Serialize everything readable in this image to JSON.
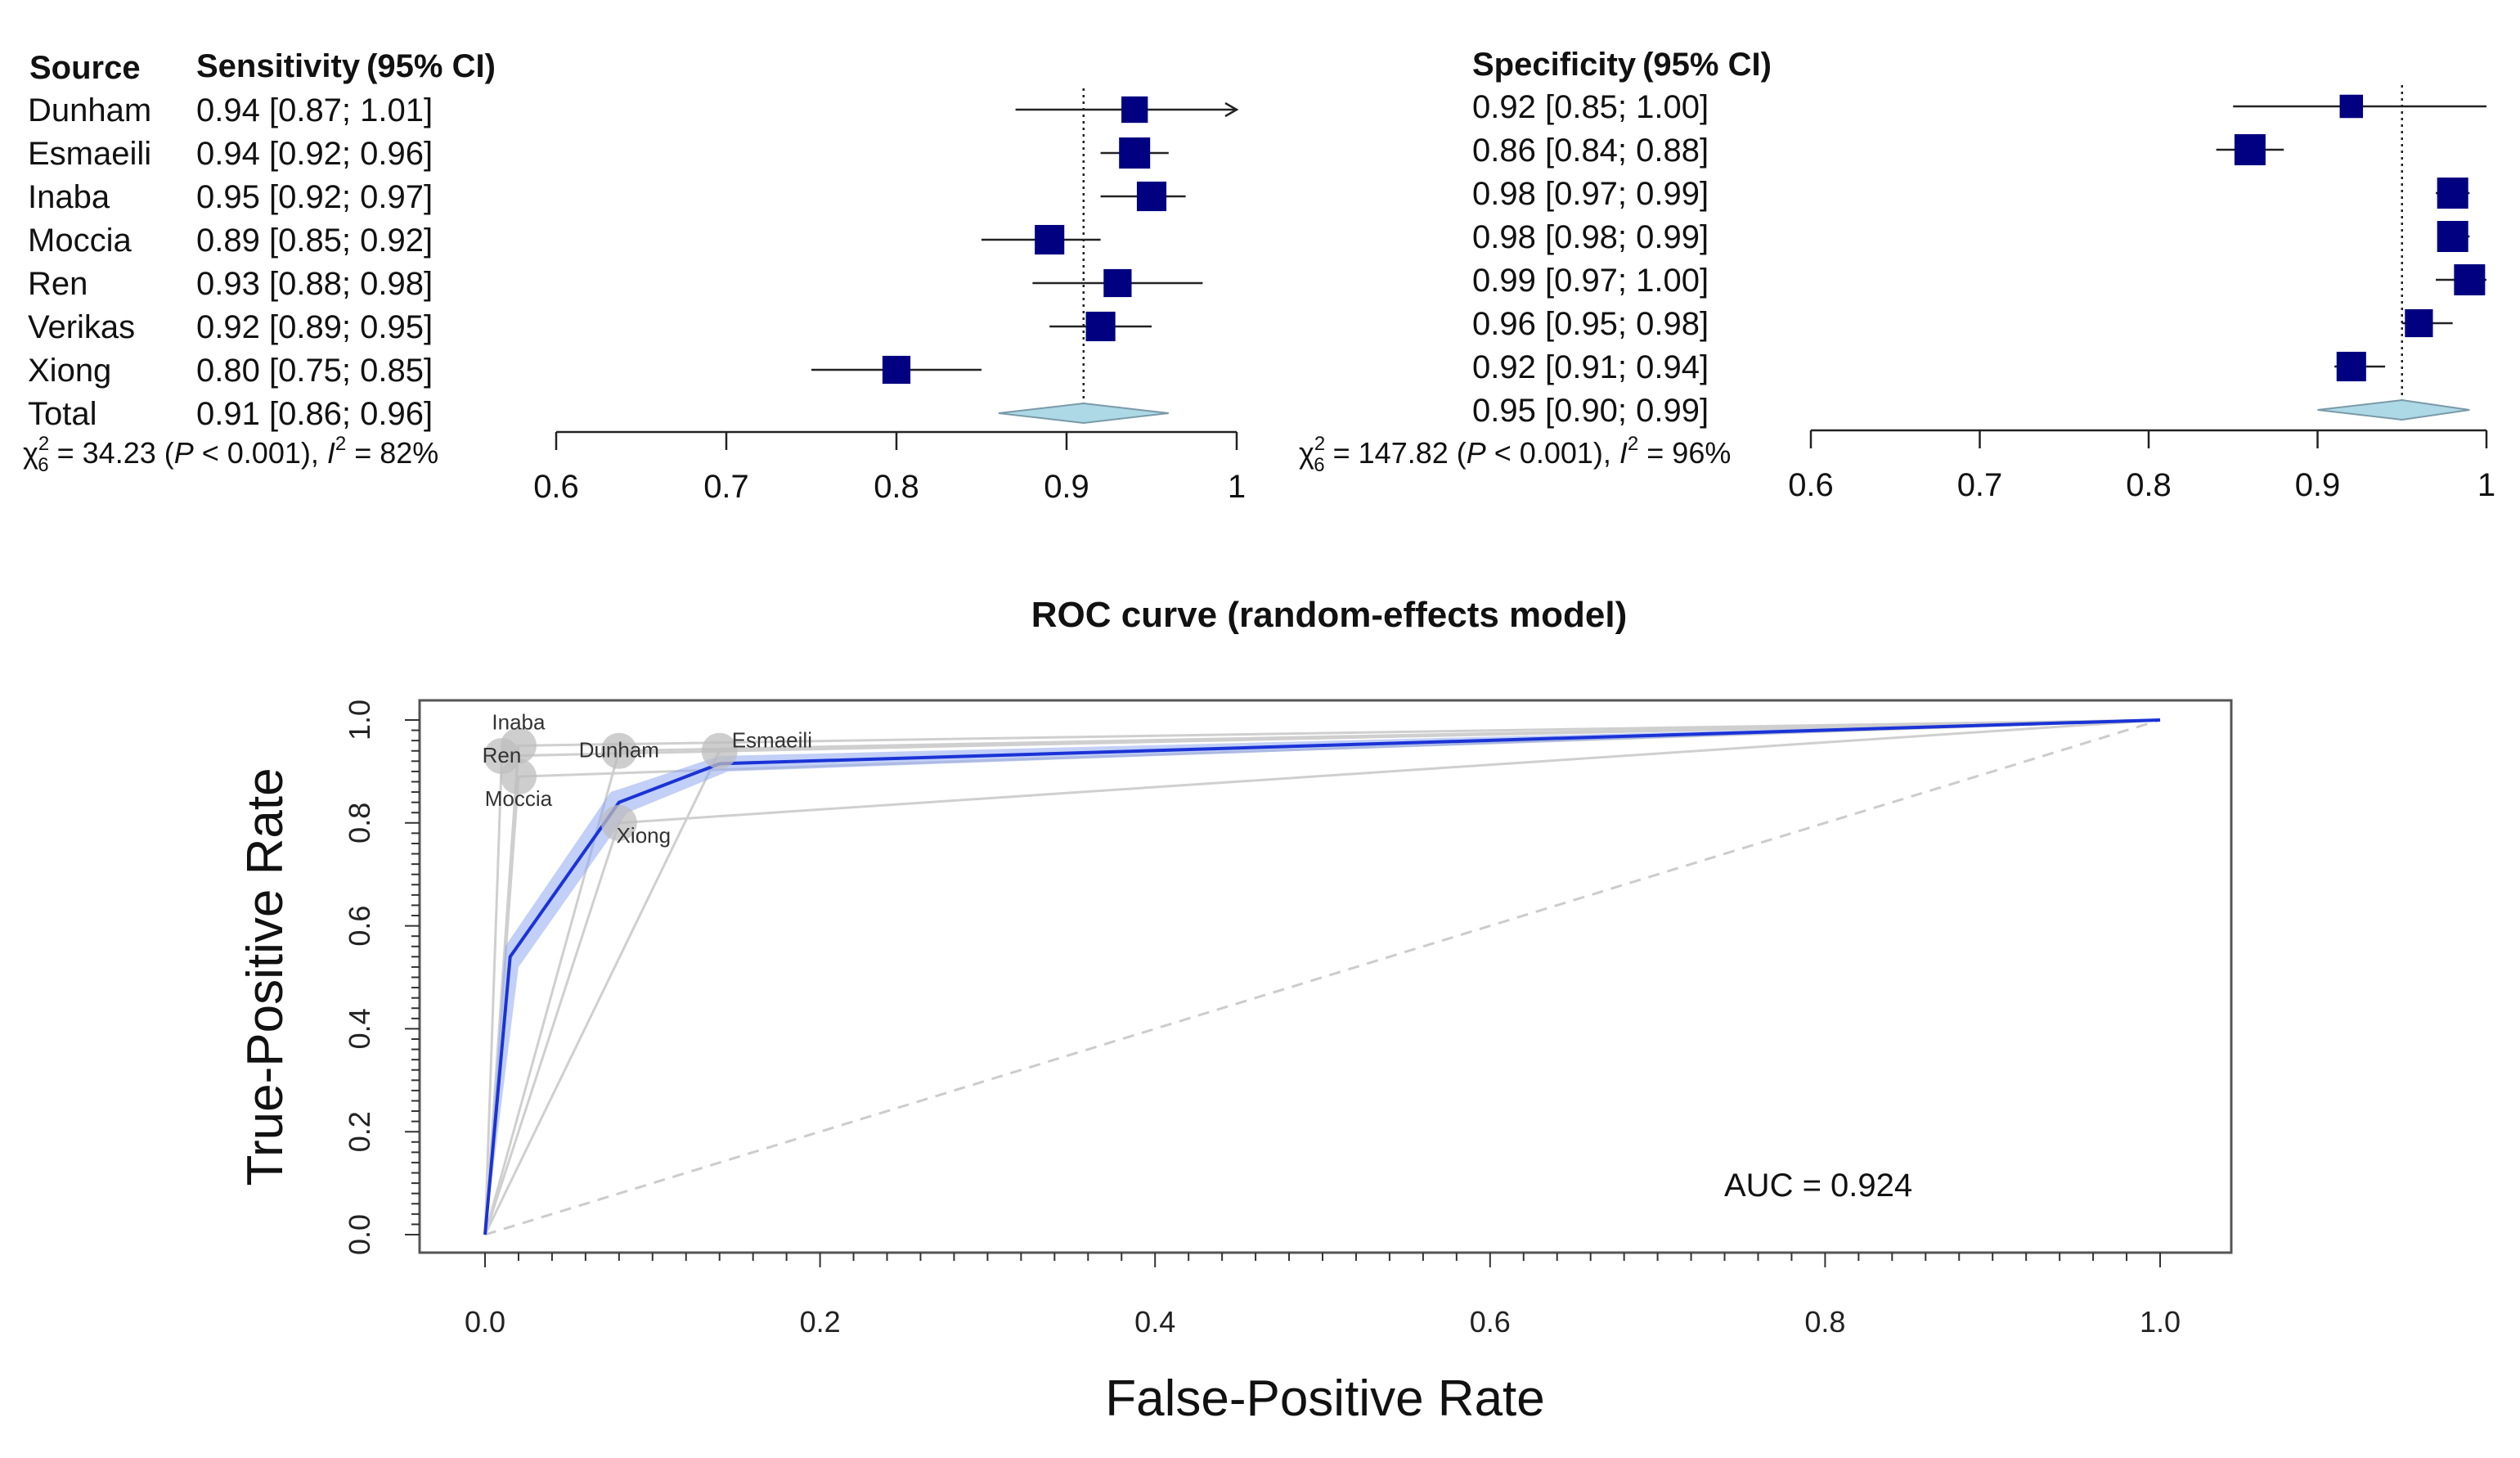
{
  "chart_data": [
    {
      "type": "forest",
      "panel": "sensitivity",
      "header_source": "Source",
      "header_estimate": "Sensitivity",
      "header_ci": "(95% CI)",
      "rows": [
        {
          "name": "Dunham",
          "text": "0.94 [0.87; 1.01]",
          "est": 0.94,
          "lo": 0.87,
          "hi": 1.01,
          "weight": 0.85
        },
        {
          "name": "Esmaeili",
          "text": "0.94 [0.92; 0.96]",
          "est": 0.94,
          "lo": 0.92,
          "hi": 0.96,
          "weight": 1.0
        },
        {
          "name": "Inaba",
          "text": "0.95 [0.92; 0.97]",
          "est": 0.95,
          "lo": 0.92,
          "hi": 0.97,
          "weight": 0.95
        },
        {
          "name": "Moccia",
          "text": "0.89 [0.85; 0.92]",
          "est": 0.89,
          "lo": 0.85,
          "hi": 0.92,
          "weight": 0.95
        },
        {
          "name": "Ren",
          "text": "0.93 [0.88; 0.98]",
          "est": 0.93,
          "lo": 0.88,
          "hi": 0.98,
          "weight": 0.9
        },
        {
          "name": "Verikas",
          "text": "0.92 [0.89; 0.95]",
          "est": 0.92,
          "lo": 0.89,
          "hi": 0.95,
          "weight": 0.95
        },
        {
          "name": "Xiong",
          "text": "0.80 [0.75; 0.85]",
          "est": 0.8,
          "lo": 0.75,
          "hi": 0.85,
          "weight": 0.9
        }
      ],
      "total": {
        "name": "Total",
        "text": "0.91 [0.86; 0.96]",
        "est": 0.91,
        "lo": 0.86,
        "hi": 0.96
      },
      "heterogeneity": {
        "chi_pre": "χ",
        "chi_sup": "2",
        "chi_sub": "6",
        "chi_value": " = 34.23 (",
        "p_label": "P",
        "p_value": " < 0.001), ",
        "i_label": "I",
        "i_sup": "2",
        "i_value": " = 82%"
      },
      "x_ticks": [
        "0.6",
        "0.7",
        "0.8",
        "0.9",
        "1"
      ],
      "xlim": [
        0.6,
        1.0
      ],
      "reference": 0.91
    },
    {
      "type": "forest",
      "panel": "specificity",
      "header_estimate": "Specificity",
      "header_ci": "(95% CI)",
      "rows": [
        {
          "name": "Dunham",
          "text": "0.92 [0.85; 1.00]",
          "est": 0.92,
          "lo": 0.85,
          "hi": 1.0,
          "weight": 0.75
        },
        {
          "name": "Esmaeili",
          "text": "0.86 [0.84; 0.88]",
          "est": 0.86,
          "lo": 0.84,
          "hi": 0.88,
          "weight": 1.0
        },
        {
          "name": "Inaba",
          "text": "0.98 [0.97; 0.99]",
          "est": 0.98,
          "lo": 0.97,
          "hi": 0.99,
          "weight": 1.0
        },
        {
          "name": "Moccia",
          "text": "0.98 [0.98; 0.99]",
          "est": 0.98,
          "lo": 0.98,
          "hi": 0.99,
          "weight": 1.0
        },
        {
          "name": "Ren",
          "text": "0.99 [0.97; 1.00]",
          "est": 0.99,
          "lo": 0.97,
          "hi": 1.0,
          "weight": 1.0
        },
        {
          "name": "Verikas",
          "text": "0.96 [0.95; 0.98]",
          "est": 0.96,
          "lo": 0.95,
          "hi": 0.98,
          "weight": 0.9
        },
        {
          "name": "Xiong",
          "text": "0.92 [0.91; 0.94]",
          "est": 0.92,
          "lo": 0.91,
          "hi": 0.94,
          "weight": 0.95
        }
      ],
      "total": {
        "name": "Total",
        "text": "0.95 [0.90; 0.99]",
        "est": 0.95,
        "lo": 0.9,
        "hi": 0.99
      },
      "heterogeneity": {
        "chi_pre": "χ",
        "chi_sup": "2",
        "chi_sub": "6",
        "chi_value": " = 147.82 (",
        "p_label": "P",
        "p_value": " < 0.001), ",
        "i_label": "I",
        "i_sup": "2",
        "i_value": " = 96%"
      },
      "x_ticks": [
        "0.6",
        "0.7",
        "0.8",
        "0.9",
        "1"
      ],
      "xlim": [
        0.6,
        1.0
      ],
      "reference": 0.95
    },
    {
      "type": "line",
      "panel": "roc",
      "title": "ROC curve (random-effects model)",
      "xlabel": "False-Positive Rate",
      "ylabel": "True-Positive Rate",
      "xlim": [
        0,
        1
      ],
      "ylim": [
        0,
        1
      ],
      "x_ticks": [
        "0.0",
        "0.2",
        "0.4",
        "0.6",
        "0.8",
        "1.0"
      ],
      "y_ticks": [
        "0.0",
        "0.2",
        "0.4",
        "0.6",
        "0.8",
        "1.0"
      ],
      "pooled_curve": [
        [
          0,
          0
        ],
        [
          0.015,
          0.54
        ],
        [
          0.08,
          0.84
        ],
        [
          0.14,
          0.915
        ],
        [
          1.0,
          1.0
        ]
      ],
      "band_upper": [
        [
          0,
          0
        ],
        [
          0.012,
          0.56
        ],
        [
          0.075,
          0.86
        ],
        [
          0.14,
          0.93
        ],
        [
          1.0,
          1.0
        ]
      ],
      "band_lower": [
        [
          0,
          0
        ],
        [
          0.02,
          0.52
        ],
        [
          0.085,
          0.82
        ],
        [
          0.145,
          0.9
        ],
        [
          1.0,
          1.0
        ]
      ],
      "studies": [
        {
          "name": "Inaba",
          "fpr": 0.02,
          "tpr": 0.95
        },
        {
          "name": "Ren",
          "fpr": 0.01,
          "tpr": 0.93
        },
        {
          "name": "Moccia",
          "fpr": 0.02,
          "tpr": 0.89
        },
        {
          "name": "Dunham",
          "fpr": 0.08,
          "tpr": 0.94
        },
        {
          "name": "Esmaeili",
          "fpr": 0.14,
          "tpr": 0.94
        },
        {
          "name": "Xiong",
          "fpr": 0.08,
          "tpr": 0.8
        }
      ],
      "annotation": "AUC = 0.924"
    }
  ]
}
